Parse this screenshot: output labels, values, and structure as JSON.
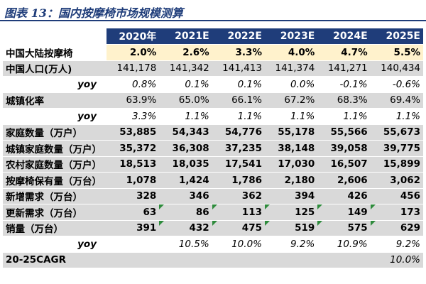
{
  "title": "图表 13：国内按摩椅市场规模测算",
  "years": [
    "2020年",
    "2021E",
    "2022E",
    "2023E",
    "2024E",
    "2025E"
  ],
  "rows": [
    {
      "label": "中国大陆按摩椅",
      "values": [
        "2.0%",
        "2.6%",
        "3.3%",
        "4.0%",
        "4.7%",
        "5.5%"
      ],
      "style": "highlight"
    },
    {
      "label": "中国人口(万人)",
      "values": [
        "141,178",
        "141,342",
        "141,413",
        "141,374",
        "141,271",
        "140,434"
      ],
      "style": "shade"
    },
    {
      "label": "yoy",
      "values": [
        "0.8%",
        "0.1%",
        "0.1%",
        "0.0%",
        "-0.1%",
        "-0.6%"
      ],
      "style": "yoy"
    },
    {
      "label": "城镇化率",
      "values": [
        "63.9%",
        "65.0%",
        "66.1%",
        "67.2%",
        "68.3%",
        "69.4%"
      ],
      "style": "shade"
    },
    {
      "label": "yoy",
      "values": [
        "3.3%",
        "1.1%",
        "1.1%",
        "1.1%",
        "1.1%",
        "1.1%"
      ],
      "style": "yoy"
    },
    {
      "label": "家庭数量（万户）",
      "values": [
        "53,885",
        "54,343",
        "54,776",
        "55,178",
        "55,566",
        "55,673"
      ],
      "style": "shade-bold"
    },
    {
      "label": "城镇家庭数量（万户）",
      "values": [
        "35,372",
        "36,308",
        "37,235",
        "38,148",
        "39,058",
        "39,775"
      ],
      "style": "shade-bold"
    },
    {
      "label": "农村家庭数量（万户）",
      "values": [
        "18,513",
        "18,035",
        "17,541",
        "17,030",
        "16,507",
        "15,899"
      ],
      "style": "shade-bold"
    },
    {
      "label": "按摩椅保有量（万台）",
      "values": [
        "1,078",
        "1,424",
        "1,786",
        "2,180",
        "2,606",
        "3,062"
      ],
      "style": "shade-bold"
    },
    {
      "label": "新增需求（万台）",
      "values": [
        "328",
        "346",
        "362",
        "394",
        "426",
        "456"
      ],
      "style": "shade-bold"
    },
    {
      "label": "更新需求（万台）",
      "values": [
        "63",
        "86",
        "113",
        "125",
        "149",
        "173"
      ],
      "style": "shade-bold",
      "markers": [
        false,
        true,
        true,
        true,
        true,
        true
      ]
    },
    {
      "label": "销量（万台）",
      "values": [
        "391",
        "432",
        "475",
        "519",
        "575",
        "629"
      ],
      "style": "shade-bold",
      "markers": [
        false,
        true,
        true,
        true,
        true,
        true
      ]
    },
    {
      "label": "yoy",
      "values": [
        "",
        "10.5%",
        "10.0%",
        "9.2%",
        "10.9%",
        "9.2%"
      ],
      "style": "yoy"
    },
    {
      "label": "20-25CAGR",
      "values": [
        "",
        "",
        "",
        "",
        "",
        "10.0%"
      ],
      "style": "cagr"
    }
  ],
  "colors": {
    "header_bg": "#1f3d7a",
    "shade": "#d9d9d9",
    "highlight": "#fff2cc",
    "marker": "#2e8b3c"
  }
}
